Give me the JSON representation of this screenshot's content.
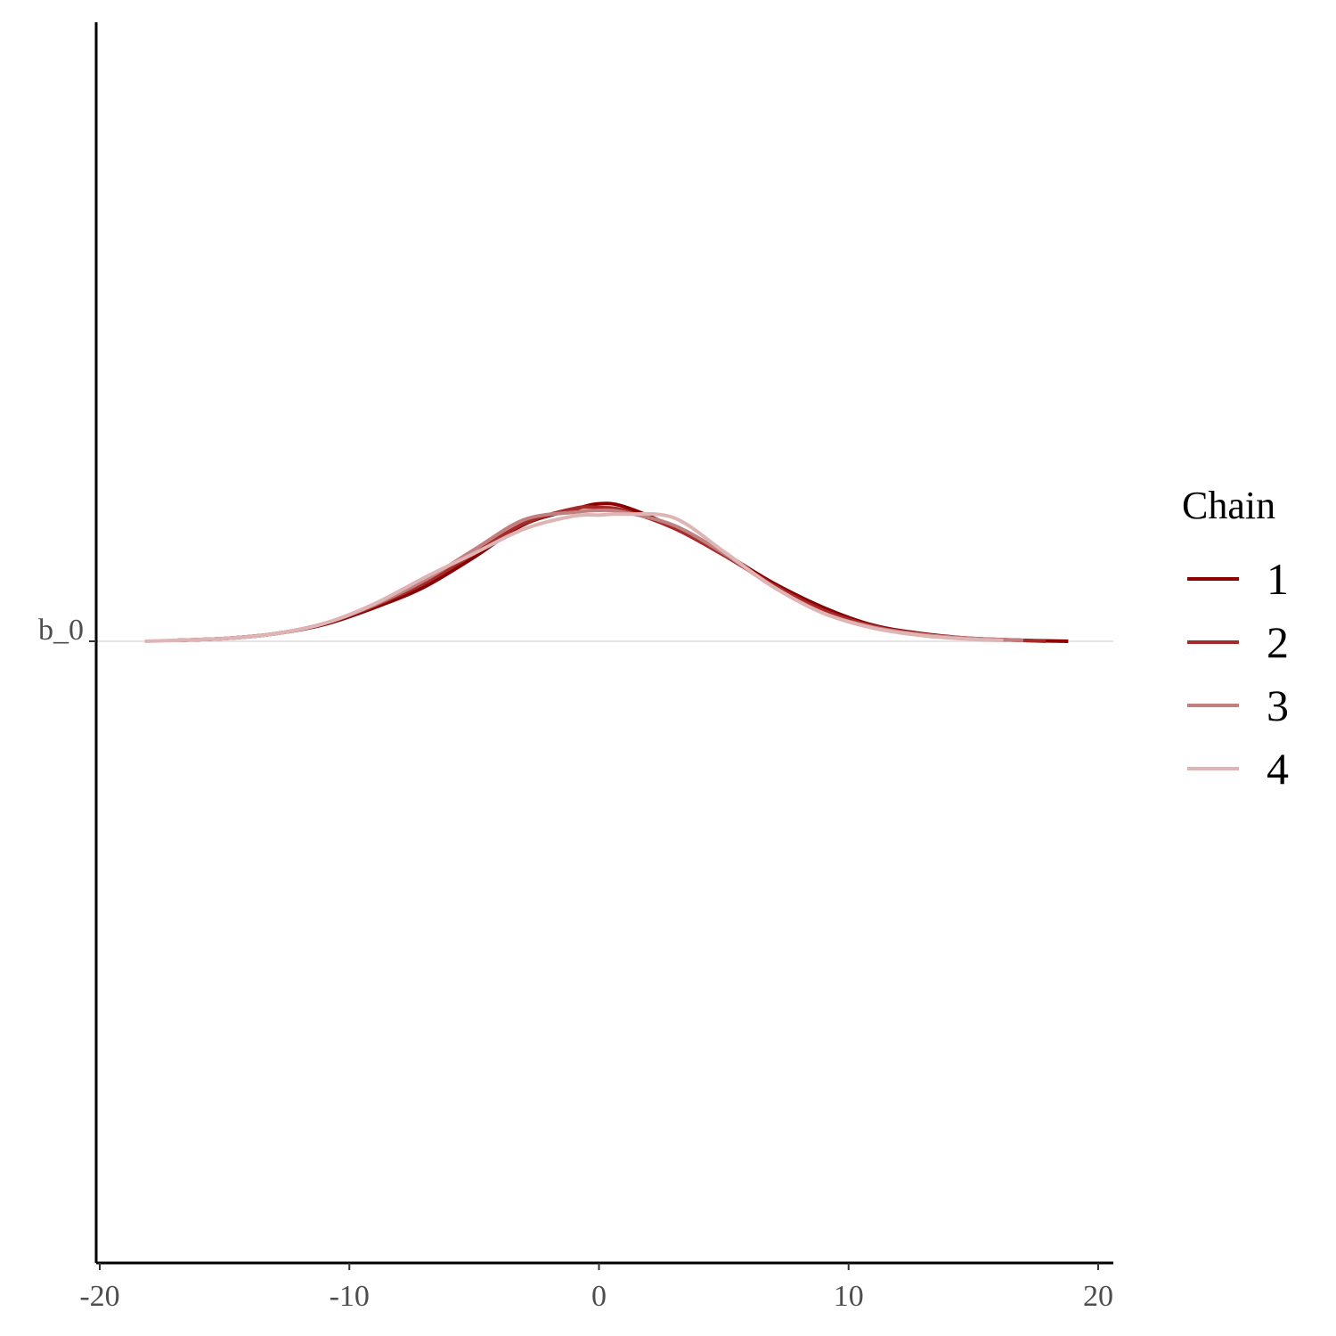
{
  "chart_data": {
    "type": "line",
    "subtype": "ridge-density",
    "title": "",
    "xlabel": "",
    "ylabel": "",
    "xlim": [
      -20,
      20.5
    ],
    "x_ticks": [
      -20,
      -10,
      0,
      10,
      20
    ],
    "x_tick_labels": [
      "-20",
      "-10",
      "0",
      "10",
      "20"
    ],
    "y_categories": [
      "b_0"
    ],
    "grid": false,
    "legend": {
      "title": "Chain",
      "position": "right"
    },
    "series": [
      {
        "name": "1",
        "color": "#8b0000",
        "x": [
          -17,
          -15,
          -13,
          -11,
          -9,
          -7,
          -5,
          -3,
          -1,
          0,
          1,
          3,
          5,
          7,
          9,
          11,
          13,
          15,
          17,
          18.8
        ],
        "density": [
          0.001,
          0.003,
          0.008,
          0.018,
          0.036,
          0.058,
          0.09,
          0.125,
          0.141,
          0.147,
          0.144,
          0.122,
          0.094,
          0.062,
          0.036,
          0.017,
          0.008,
          0.003,
          0.001,
          0.0
        ]
      },
      {
        "name": "2",
        "color": "#a52a2a",
        "x": [
          -17,
          -15,
          -13,
          -11,
          -9,
          -7,
          -5,
          -3,
          -1,
          0,
          1,
          3,
          5,
          7,
          9,
          11,
          13,
          15,
          17,
          17.9
        ],
        "density": [
          0.001,
          0.003,
          0.008,
          0.019,
          0.038,
          0.062,
          0.094,
          0.126,
          0.142,
          0.143,
          0.14,
          0.121,
          0.092,
          0.06,
          0.033,
          0.016,
          0.007,
          0.003,
          0.001,
          0.0
        ]
      },
      {
        "name": "3",
        "color": "#c08080",
        "x": [
          -17,
          -15,
          -13,
          -11,
          -9,
          -7,
          -5,
          -3,
          -1,
          0,
          1,
          3,
          5,
          7,
          9,
          11,
          13,
          15,
          17
        ],
        "density": [
          0.001,
          0.003,
          0.008,
          0.019,
          0.039,
          0.065,
          0.098,
          0.13,
          0.138,
          0.14,
          0.138,
          0.124,
          0.094,
          0.058,
          0.03,
          0.015,
          0.007,
          0.003,
          0.001
        ]
      },
      {
        "name": "4",
        "color": "#dfb4b4",
        "x": [
          -18.2,
          -17,
          -15,
          -13,
          -11,
          -9,
          -7,
          -5,
          -3,
          -1,
          0,
          1,
          3,
          5,
          7,
          9,
          11,
          13,
          15,
          16.2
        ],
        "density": [
          0.0,
          0.001,
          0.003,
          0.008,
          0.019,
          0.04,
          0.068,
          0.094,
          0.12,
          0.134,
          0.135,
          0.136,
          0.132,
          0.096,
          0.058,
          0.03,
          0.014,
          0.006,
          0.002,
          0.001
        ]
      }
    ]
  }
}
